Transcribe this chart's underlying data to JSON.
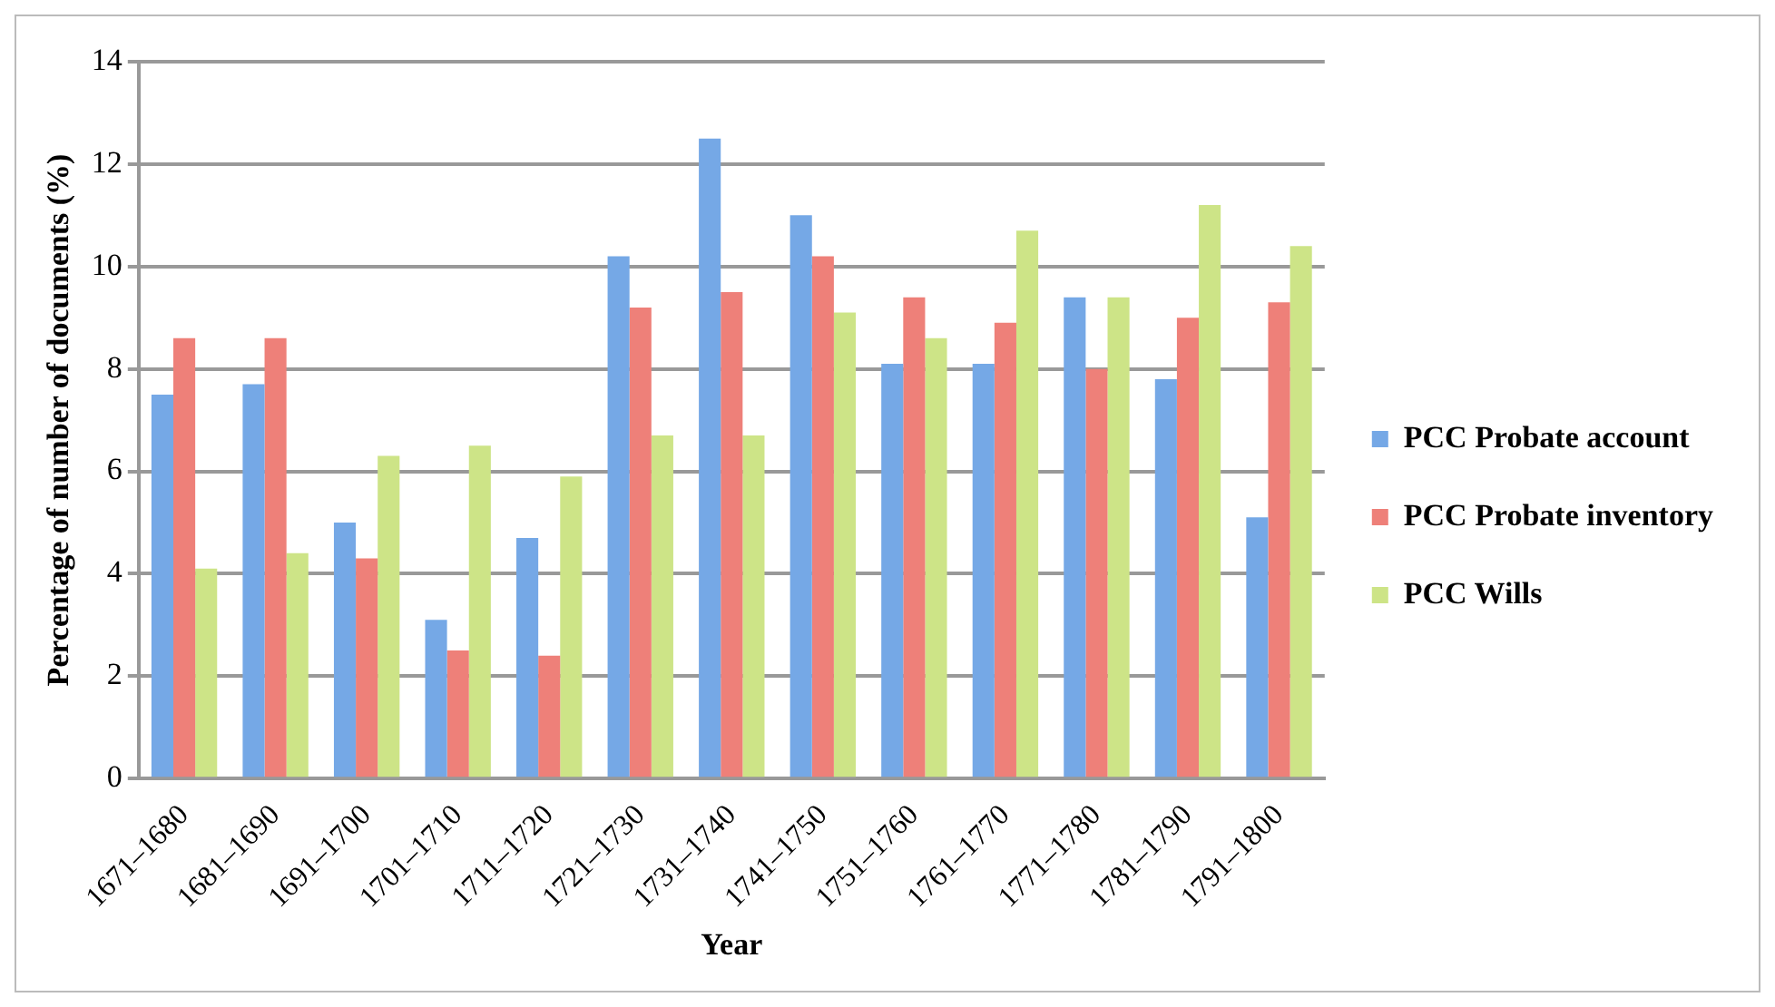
{
  "chart_data": {
    "type": "bar",
    "xlabel": "Year",
    "ylabel": "Percentage of number of documents (%)",
    "categories": [
      "1671–1680",
      "1681–1690",
      "1691–1700",
      "1701–1710",
      "1711–1720",
      "1721–1730",
      "1731–1740",
      "1741–1750",
      "1751–1760",
      "1761–1770",
      "1771–1780",
      "1781–1790",
      "1791–1800"
    ],
    "series": [
      {
        "name": "PCC Probate account",
        "color": "#75a8e6",
        "values": [
          7.5,
          7.7,
          5.0,
          3.1,
          4.7,
          10.2,
          12.5,
          11.0,
          8.1,
          8.1,
          9.4,
          7.8,
          5.1
        ]
      },
      {
        "name": "PCC Probate inventory",
        "color": "#ee8079",
        "values": [
          8.6,
          8.6,
          4.3,
          2.5,
          2.4,
          9.2,
          9.5,
          10.2,
          9.4,
          8.9,
          8.0,
          9.0,
          9.3
        ]
      },
      {
        "name": "PCC Wills",
        "color": "#cde487",
        "values": [
          4.1,
          4.4,
          6.3,
          6.5,
          5.9,
          6.7,
          6.7,
          9.1,
          8.6,
          10.7,
          9.4,
          11.2,
          10.4
        ]
      }
    ],
    "ylim": [
      0,
      14
    ],
    "yticks": [
      0,
      2,
      4,
      6,
      8,
      10,
      12,
      14
    ],
    "grid": "y",
    "legend": "right"
  }
}
